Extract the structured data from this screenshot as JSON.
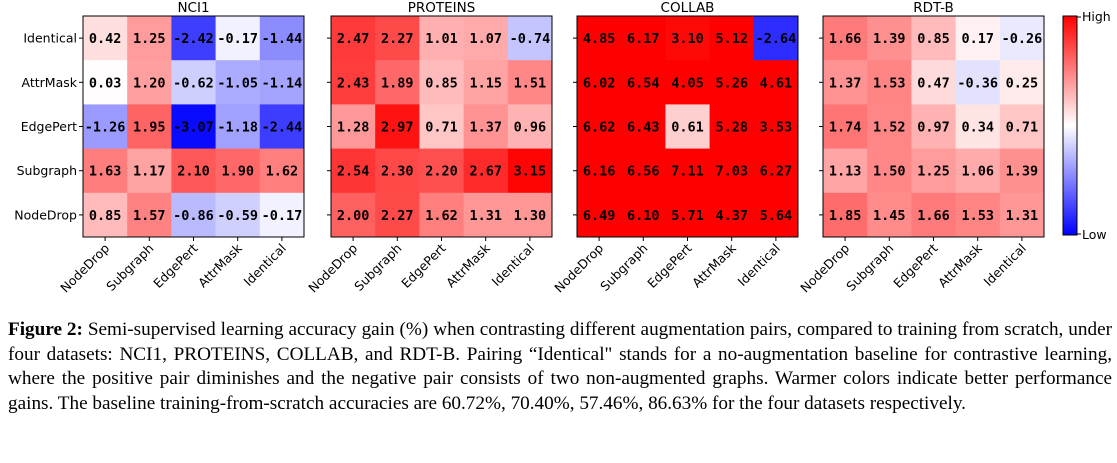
{
  "chart_data": [
    {
      "type": "heatmap",
      "title": "NCI1",
      "rows": [
        "Identical",
        "AttrMask",
        "EdgePert",
        "Subgraph",
        "NodeDrop"
      ],
      "columns": [
        "NodeDrop",
        "Subgraph",
        "EdgePert",
        "AttrMask",
        "Identical"
      ],
      "values": [
        [
          "0.42",
          "1.25",
          "-2.42",
          "-0.17",
          "-1.44"
        ],
        [
          "0.03",
          "1.20",
          "-0.62",
          "-1.05",
          "-1.14"
        ],
        [
          "-1.26",
          "1.95",
          "-3.07",
          "-1.18",
          "-2.44"
        ],
        [
          "1.63",
          "1.17",
          "2.10",
          "1.90",
          "1.62"
        ],
        [
          "0.85",
          "1.57",
          "-0.86",
          "-0.59",
          "-0.17"
        ]
      ]
    },
    {
      "type": "heatmap",
      "title": "PROTEINS",
      "rows": [
        "Identical",
        "AttrMask",
        "EdgePert",
        "Subgraph",
        "NodeDrop"
      ],
      "columns": [
        "NodeDrop",
        "Subgraph",
        "EdgePert",
        "AttrMask",
        "Identical"
      ],
      "values": [
        [
          "2.47",
          "2.27",
          "1.01",
          "1.07",
          "-0.74"
        ],
        [
          "2.43",
          "1.89",
          "0.85",
          "1.15",
          "1.51"
        ],
        [
          "1.28",
          "2.97",
          "0.71",
          "1.37",
          "0.96"
        ],
        [
          "2.54",
          "2.30",
          "2.20",
          "2.67",
          "3.15"
        ],
        [
          "2.00",
          "2.27",
          "1.62",
          "1.31",
          "1.30"
        ]
      ]
    },
    {
      "type": "heatmap",
      "title": "COLLAB",
      "rows": [
        "Identical",
        "AttrMask",
        "EdgePert",
        "Subgraph",
        "NodeDrop"
      ],
      "columns": [
        "NodeDrop",
        "Subgraph",
        "EdgePert",
        "AttrMask",
        "Identical"
      ],
      "values": [
        [
          "4.85",
          "6.17",
          "3.10",
          "5.12",
          "-2.64"
        ],
        [
          "6.02",
          "6.54",
          "4.05",
          "5.26",
          "4.61"
        ],
        [
          "6.62",
          "6.43",
          "0.61",
          "5.28",
          "3.53"
        ],
        [
          "6.16",
          "6.56",
          "7.11",
          "7.03",
          "6.27"
        ],
        [
          "6.49",
          "6.10",
          "5.71",
          "4.37",
          "5.64"
        ]
      ]
    },
    {
      "type": "heatmap",
      "title": "RDT-B",
      "rows": [
        "Identical",
        "AttrMask",
        "EdgePert",
        "Subgraph",
        "NodeDrop"
      ],
      "columns": [
        "NodeDrop",
        "Subgraph",
        "EdgePert",
        "AttrMask",
        "Identical"
      ],
      "values": [
        [
          "1.66",
          "1.39",
          "0.85",
          "0.17",
          "-0.26"
        ],
        [
          "1.37",
          "1.53",
          "0.47",
          "-0.36",
          "0.25"
        ],
        [
          "1.74",
          "1.52",
          "0.97",
          "0.34",
          "0.71"
        ],
        [
          "1.13",
          "1.50",
          "1.25",
          "1.06",
          "1.39"
        ],
        [
          "1.85",
          "1.45",
          "1.66",
          "1.53",
          "1.31"
        ]
      ]
    }
  ],
  "colorbar": {
    "high_label": "High",
    "low_label": "Low",
    "high_color": "#ff0000",
    "mid_color": "#ffffff",
    "low_color": "#0000ff"
  },
  "caption": {
    "lead": "Figure 2:",
    "text": " Semi-supervised learning accuracy gain (%) when contrasting different augmentation pairs, compared to training from scratch, under four datasets: NCI1, PROTEINS, COLLAB, and RDT-B. Pairing “Identical\" stands for a no-augmentation baseline for contrastive learning, where the positive pair diminishes and the negative pair consists of two non-augmented graphs. Warmer colors indicate better performance gains. The baseline training-from-scratch accuracies are 60.72%, 70.40%, 57.46%, 86.63% for the four datasets respectively."
  }
}
